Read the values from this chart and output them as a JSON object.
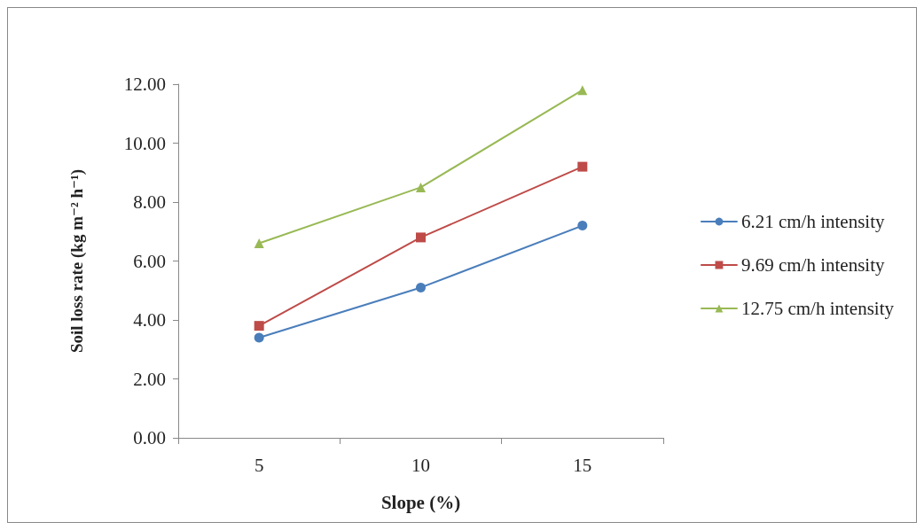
{
  "chart_data": {
    "type": "line",
    "xlabel": "Slope (%)",
    "ylabel": "Soil loss rate (kg m⁻² h⁻¹)",
    "categories": [
      "5",
      "10",
      "15"
    ],
    "series": [
      {
        "name": "6.21 cm/h intensity",
        "color": "#4a7ebb",
        "marker": "circle",
        "values": [
          3.4,
          5.1,
          7.2
        ]
      },
      {
        "name": "9.69 cm/h intensity",
        "color": "#be4b48",
        "marker": "square",
        "values": [
          3.8,
          6.8,
          9.2
        ]
      },
      {
        "name": "12.75 cm/h intensity",
        "color": "#98b954",
        "marker": "triangle",
        "values": [
          6.6,
          8.5,
          11.8
        ]
      }
    ],
    "ylim": [
      0,
      12
    ],
    "yticks": [
      {
        "value": 0,
        "label": "0.00"
      },
      {
        "value": 2,
        "label": "2.00"
      },
      {
        "value": 4,
        "label": "4.00"
      },
      {
        "value": 6,
        "label": "6.00"
      },
      {
        "value": 8,
        "label": "8.00"
      },
      {
        "value": 10,
        "label": "10.00"
      },
      {
        "value": 12,
        "label": "12.00"
      }
    ],
    "grid": false,
    "legend": "right",
    "line_style": "solid"
  }
}
